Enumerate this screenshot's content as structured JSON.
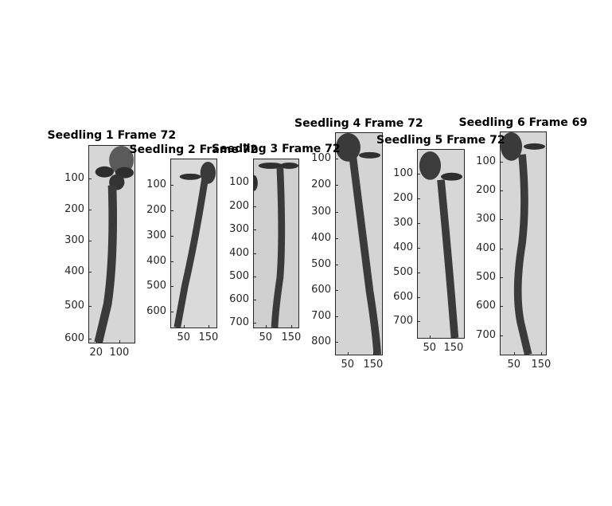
{
  "panels": [
    {
      "title": "Seedling 1 Frame 72",
      "yticks": [
        "100",
        "200",
        "300",
        "400",
        "500",
        "600"
      ],
      "xticks": [
        "20",
        "100"
      ]
    },
    {
      "title": "Seedling 2 Frame 72",
      "yticks": [
        "100",
        "200",
        "300",
        "400",
        "500",
        "600"
      ],
      "xticks": [
        "50",
        "150"
      ]
    },
    {
      "title": "Seedling 3 Frame 72",
      "yticks": [
        "100",
        "200",
        "300",
        "400",
        "500",
        "600",
        "700"
      ],
      "xticks": [
        "50",
        "150"
      ]
    },
    {
      "title": "Seedling 4 Frame 72",
      "yticks": [
        "100",
        "200",
        "300",
        "400",
        "500",
        "600",
        "700",
        "800"
      ],
      "xticks": [
        "50",
        "150"
      ]
    },
    {
      "title": "Seedling 5 Frame 72",
      "yticks": [
        "100",
        "200",
        "300",
        "400",
        "500",
        "600",
        "700"
      ],
      "xticks": [
        "50",
        "150"
      ]
    },
    {
      "title": "Seedling 6 Frame 69",
      "yticks": [
        "100",
        "200",
        "300",
        "400",
        "500",
        "600",
        "700"
      ],
      "xticks": [
        "50",
        "150"
      ]
    }
  ]
}
